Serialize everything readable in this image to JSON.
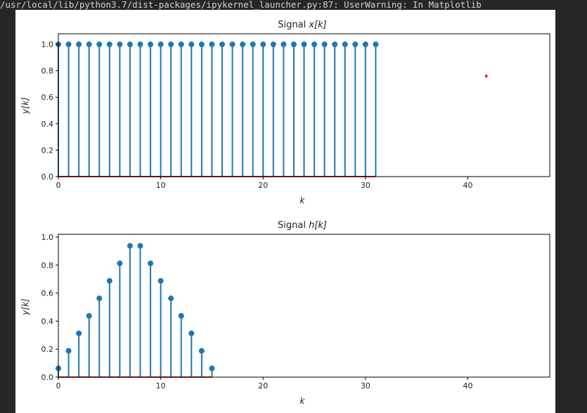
{
  "warning_text": "/usr/local/lib/python3.7/dist-packages/ipykernel_launcher.py:87: UserWarning: In Matplotlib",
  "chart_data": [
    {
      "type": "stem",
      "title": "Signal x[k]",
      "title_base": "Signal ",
      "title_math": "x[k]",
      "xlabel": "k",
      "ylabel": "y[k]",
      "xlim": [
        0,
        48
      ],
      "ylim": [
        0,
        1.08
      ],
      "xticks": [
        0,
        10,
        20,
        30,
        40
      ],
      "yticks": [
        0.0,
        0.2,
        0.4,
        0.6,
        0.8,
        1.0
      ],
      "stem_color": "#1f77b4",
      "baseline_color": "#d62728",
      "x": [
        0,
        1,
        2,
        3,
        4,
        5,
        6,
        7,
        8,
        9,
        10,
        11,
        12,
        13,
        14,
        15,
        16,
        17,
        18,
        19,
        20,
        21,
        22,
        23,
        24,
        25,
        26,
        27,
        28,
        29,
        30,
        31
      ],
      "y": [
        1,
        1,
        1,
        1,
        1,
        1,
        1,
        1,
        1,
        1,
        1,
        1,
        1,
        1,
        1,
        1,
        1,
        1,
        1,
        1,
        1,
        1,
        1,
        1,
        1,
        1,
        1,
        1,
        1,
        1,
        1,
        1
      ],
      "baseline_x": [
        0,
        31
      ],
      "extra_point": {
        "x": 41.8,
        "y": 0.76,
        "color": "#d62728"
      }
    },
    {
      "type": "stem",
      "title": "Signal h[k]",
      "title_base": "Signal ",
      "title_math": "h[k]",
      "xlabel": "k",
      "ylabel": "y[k]",
      "xlim": [
        0,
        48
      ],
      "ylim": [
        0,
        1.02
      ],
      "xticks": [
        0,
        10,
        20,
        30,
        40
      ],
      "yticks": [
        0.0,
        0.2,
        0.4,
        0.6,
        0.8,
        1.0
      ],
      "stem_color": "#1f77b4",
      "baseline_color": "#d62728",
      "x": [
        0,
        1,
        2,
        3,
        4,
        5,
        6,
        7,
        8,
        9,
        10,
        11,
        12,
        13,
        14,
        15
      ],
      "y": [
        0.0625,
        0.1875,
        0.3125,
        0.4375,
        0.5625,
        0.6875,
        0.8125,
        0.9375,
        0.9375,
        0.8125,
        0.6875,
        0.5625,
        0.4375,
        0.3125,
        0.1875,
        0.0625
      ],
      "baseline_x": [
        0,
        15
      ]
    }
  ]
}
